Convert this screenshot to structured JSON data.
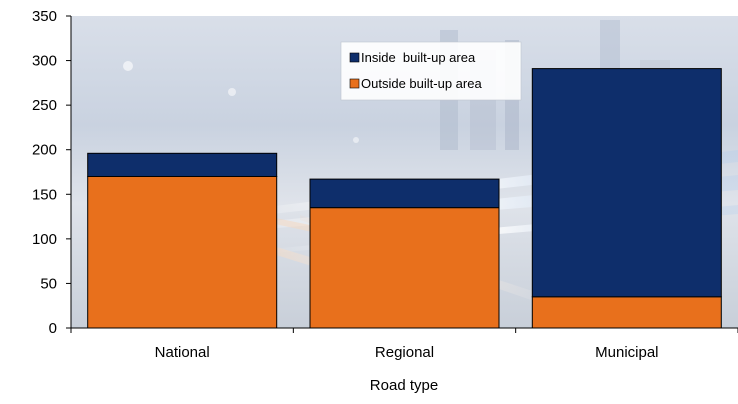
{
  "chart_data": {
    "type": "bar",
    "stacked": true,
    "categories": [
      "National",
      "Regional",
      "Municipal"
    ],
    "series": [
      {
        "name": "Outside built-up area",
        "values": [
          170,
          135,
          35
        ],
        "color": "#E8701C"
      },
      {
        "name": "Inside  built-up area",
        "values": [
          26,
          32,
          256
        ],
        "color": "#0E2E6B"
      }
    ],
    "legend_order": [
      1,
      0
    ],
    "xlabel": "Road type",
    "ylabel": "",
    "ylim": [
      0,
      350
    ],
    "yticks": [
      0,
      50,
      100,
      150,
      200,
      250,
      300,
      350
    ],
    "grid": false,
    "legend_position": "top-right",
    "background": "photo of night traffic light trails, blue and orange tones"
  }
}
